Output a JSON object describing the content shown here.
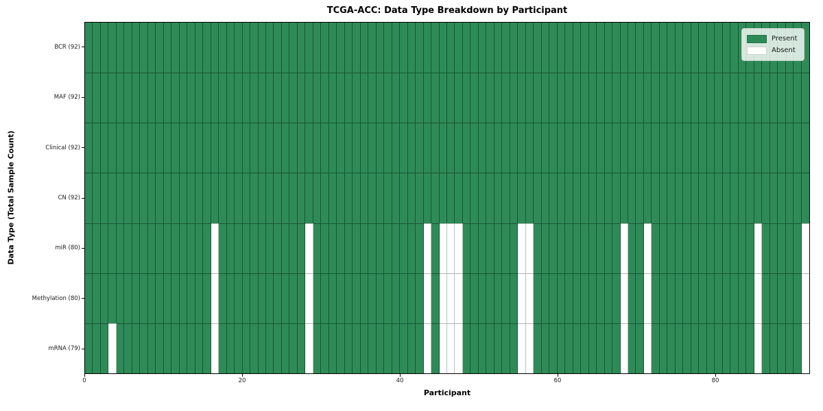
{
  "chart_data": {
    "type": "heatmap",
    "title": "TCGA-ACC: Data Type Breakdown by Participant",
    "xlabel": "Participant",
    "ylabel": "Data Type (Total Sample Count)",
    "n_participants": 92,
    "x_ticks": [
      0,
      20,
      40,
      60,
      80
    ],
    "xlim": [
      0,
      92
    ],
    "grid": false,
    "legend_position": "upper-right",
    "cell_states": [
      "Present",
      "Absent"
    ],
    "rows": [
      {
        "name": "BCR",
        "count": 92,
        "label": "BCR (92)",
        "absent_participants": []
      },
      {
        "name": "MAF",
        "count": 92,
        "label": "MAF (92)",
        "absent_participants": []
      },
      {
        "name": "Clinical",
        "count": 92,
        "label": "Clinical (92)",
        "absent_participants": []
      },
      {
        "name": "CN",
        "count": 92,
        "label": "CN (92)",
        "absent_participants": []
      },
      {
        "name": "miR",
        "count": 80,
        "label": "miR (80)",
        "absent_participants": [
          16,
          28,
          43,
          45,
          46,
          47,
          55,
          56,
          68,
          71,
          85,
          91
        ]
      },
      {
        "name": "Methylation",
        "count": 80,
        "label": "Methylation (80)",
        "absent_participants": [
          16,
          28,
          43,
          45,
          46,
          47,
          55,
          56,
          68,
          71,
          85,
          91
        ]
      },
      {
        "name": "mRNA",
        "count": 79,
        "label": "mRNA (79)",
        "absent_participants": [
          3,
          16,
          28,
          43,
          45,
          46,
          47,
          55,
          56,
          68,
          71,
          85,
          91
        ]
      }
    ],
    "legend": [
      {
        "label": "Present",
        "color": "#2e8b57"
      },
      {
        "label": "Absent",
        "color": "#ffffff"
      }
    ],
    "colors": {
      "present": "#2e8b57",
      "absent": "#ffffff",
      "cell_edge": "rgba(8,42,26,0.55)",
      "spine": "#000000"
    }
  }
}
